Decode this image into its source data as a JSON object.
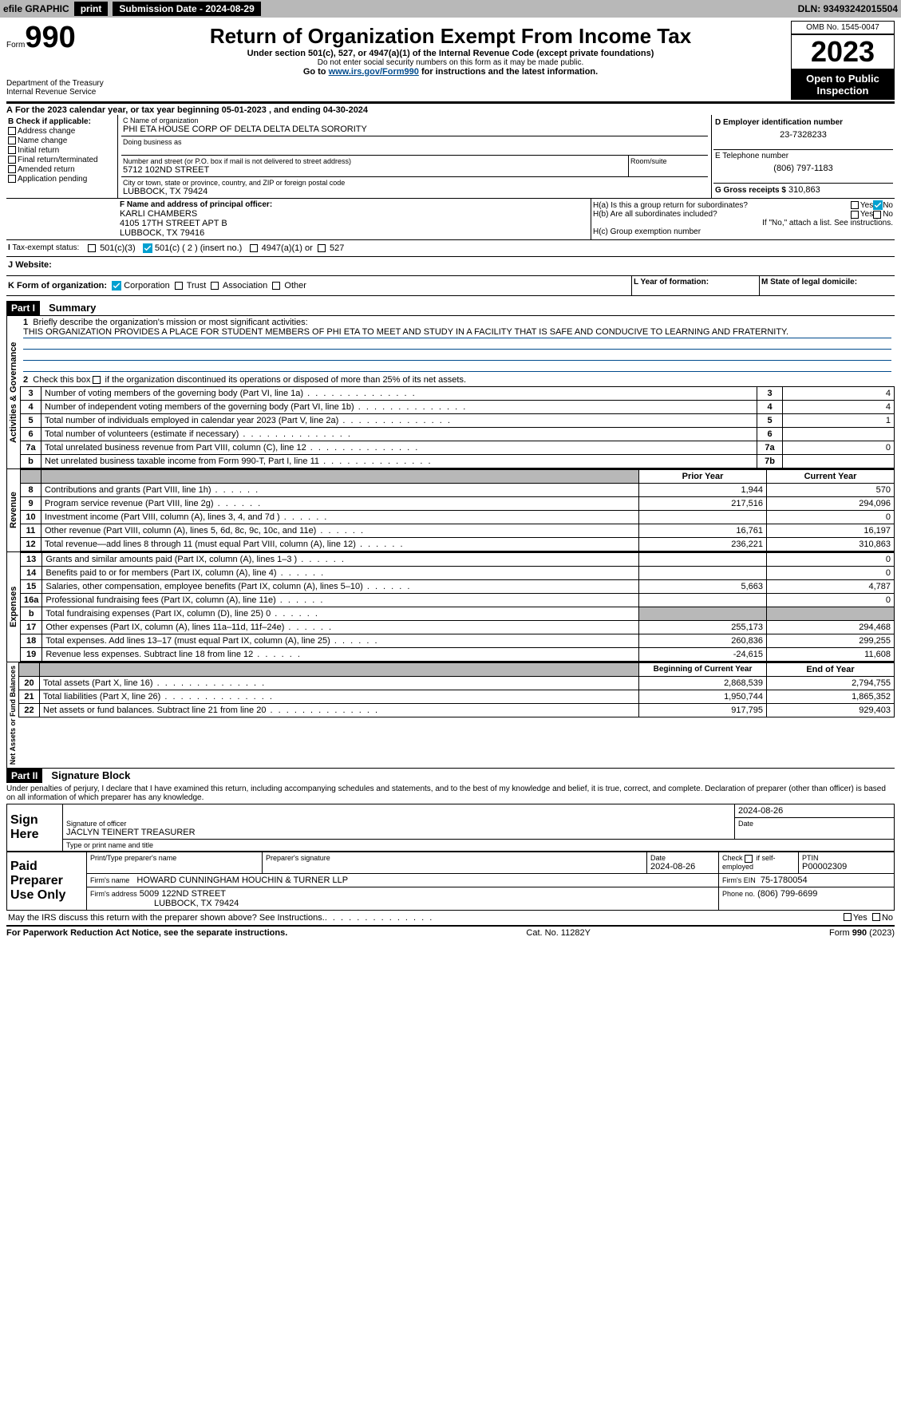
{
  "topbar": {
    "efile": "efile GRAPHIC",
    "print": "print",
    "subdate_label": "Submission Date - 2024-08-29",
    "dln": "DLN: 93493242015504"
  },
  "header": {
    "form_label": "Form",
    "form_num": "990",
    "dept": "Department of the Treasury\nInternal Revenue Service",
    "title": "Return of Organization Exempt From Income Tax",
    "subtitle": "Under section 501(c), 527, or 4947(a)(1) of the Internal Revenue Code (except private foundations)",
    "sub1": "Do not enter social security numbers on this form as it may be made public.",
    "sub2_pre": "Go to ",
    "sub2_link": "www.irs.gov/Form990",
    "sub2_post": " for instructions and the latest information.",
    "omb": "OMB No. 1545-0047",
    "year": "2023",
    "open_public": "Open to Public Inspection"
  },
  "A": {
    "text": "For the 2023 calendar year, or tax year beginning 05-01-2023   , and ending 04-30-2024"
  },
  "B": {
    "label": "B Check if applicable:",
    "items": [
      "Address change",
      "Name change",
      "Initial return",
      "Final return/terminated",
      "Amended return",
      "Application pending"
    ]
  },
  "C": {
    "name_label": "C Name of organization",
    "name": "PHI ETA HOUSE CORP OF DELTA DELTA DELTA SORORITY",
    "dba_label": "Doing business as",
    "dba": "",
    "addr_label": "Number and street (or P.O. box if mail is not delivered to street address)",
    "addr": "5712 102ND STREET",
    "room_label": "Room/suite",
    "room": "",
    "city_label": "City or town, state or province, country, and ZIP or foreign postal code",
    "city": "LUBBOCK, TX  79424"
  },
  "D": {
    "label": "D Employer identification number",
    "val": "23-7328233"
  },
  "E": {
    "label": "E Telephone number",
    "val": "(806) 797-1183"
  },
  "G": {
    "label": "G Gross receipts $",
    "val": "310,863"
  },
  "F": {
    "label": "F Name and address of principal officer:",
    "name": "KARLI CHAMBERS",
    "addr1": "4105 17TH STREET APT B",
    "addr2": "LUBBOCK, TX  79416"
  },
  "H": {
    "a_label": "H(a)  Is this a group return for subordinates?",
    "a_yes": "Yes",
    "a_no": "No",
    "b_label": "H(b)  Are all subordinates included?",
    "b_note": "If \"No,\" attach a list. See instructions.",
    "c_label": "H(c)  Group exemption number"
  },
  "I": {
    "label": "Tax-exempt status:",
    "opt1": "501(c)(3)",
    "opt2": "501(c) ( 2 ) (insert no.)",
    "opt3": "4947(a)(1) or",
    "opt4": "527"
  },
  "J": {
    "label": "Website:",
    "val": ""
  },
  "K": {
    "label": "K Form of organization:",
    "opts": [
      "Corporation",
      "Trust",
      "Association",
      "Other"
    ]
  },
  "L": {
    "label": "L Year of formation:",
    "val": ""
  },
  "M": {
    "label": "M State of legal domicile:",
    "val": ""
  },
  "part1": {
    "hdr": "Part I",
    "title": "Summary",
    "l1_label": "Briefly describe the organization's mission or most significant activities:",
    "l1_text": "THIS ORGANIZATION PROVIDES A PLACE FOR STUDENT MEMBERS OF PHI ETA TO MEET AND STUDY IN A FACILITY THAT IS SAFE AND CONDUCIVE TO LEARNING AND FRATERNITY.",
    "l2": "Check this box     if the organization discontinued its operations or disposed of more than 25% of its net assets.",
    "lines_ag": [
      {
        "n": "3",
        "t": "Number of voting members of the governing body (Part VI, line 1a)",
        "r": "3",
        "v": "4"
      },
      {
        "n": "4",
        "t": "Number of independent voting members of the governing body (Part VI, line 1b)",
        "r": "4",
        "v": "4"
      },
      {
        "n": "5",
        "t": "Total number of individuals employed in calendar year 2023 (Part V, line 2a)",
        "r": "5",
        "v": "1"
      },
      {
        "n": "6",
        "t": "Total number of volunteers (estimate if necessary)",
        "r": "6",
        "v": ""
      },
      {
        "n": "7a",
        "t": "Total unrelated business revenue from Part VIII, column (C), line 12",
        "r": "7a",
        "v": "0"
      },
      {
        "n": "b",
        "t": "Net unrelated business taxable income from Form 990-T, Part I, line 11",
        "r": "7b",
        "v": ""
      }
    ],
    "col_prior": "Prior Year",
    "col_current": "Current Year",
    "revenue": [
      {
        "n": "8",
        "t": "Contributions and grants (Part VIII, line 1h)",
        "p": "1,944",
        "c": "570"
      },
      {
        "n": "9",
        "t": "Program service revenue (Part VIII, line 2g)",
        "p": "217,516",
        "c": "294,096"
      },
      {
        "n": "10",
        "t": "Investment income (Part VIII, column (A), lines 3, 4, and 7d )",
        "p": "",
        "c": "0"
      },
      {
        "n": "11",
        "t": "Other revenue (Part VIII, column (A), lines 5, 6d, 8c, 9c, 10c, and 11e)",
        "p": "16,761",
        "c": "16,197"
      },
      {
        "n": "12",
        "t": "Total revenue—add lines 8 through 11 (must equal Part VIII, column (A), line 12)",
        "p": "236,221",
        "c": "310,863"
      }
    ],
    "expenses": [
      {
        "n": "13",
        "t": "Grants and similar amounts paid (Part IX, column (A), lines 1–3 )",
        "p": "",
        "c": "0"
      },
      {
        "n": "14",
        "t": "Benefits paid to or for members (Part IX, column (A), line 4)",
        "p": "",
        "c": "0"
      },
      {
        "n": "15",
        "t": "Salaries, other compensation, employee benefits (Part IX, column (A), lines 5–10)",
        "p": "5,663",
        "c": "4,787"
      },
      {
        "n": "16a",
        "t": "Professional fundraising fees (Part IX, column (A), line 11e)",
        "p": "",
        "c": "0"
      },
      {
        "n": "b",
        "t": "Total fundraising expenses (Part IX, column (D), line 25) 0",
        "p": "SHADE",
        "c": "SHADE"
      },
      {
        "n": "17",
        "t": "Other expenses (Part IX, column (A), lines 11a–11d, 11f–24e)",
        "p": "255,173",
        "c": "294,468"
      },
      {
        "n": "18",
        "t": "Total expenses. Add lines 13–17 (must equal Part IX, column (A), line 25)",
        "p": "260,836",
        "c": "299,255"
      },
      {
        "n": "19",
        "t": "Revenue less expenses. Subtract line 18 from line 12",
        "p": "-24,615",
        "c": "11,608"
      }
    ],
    "col_begin": "Beginning of Current Year",
    "col_end": "End of Year",
    "netassets": [
      {
        "n": "20",
        "t": "Total assets (Part X, line 16)",
        "p": "2,868,539",
        "c": "2,794,755"
      },
      {
        "n": "21",
        "t": "Total liabilities (Part X, line 26)",
        "p": "1,950,744",
        "c": "1,865,352"
      },
      {
        "n": "22",
        "t": "Net assets or fund balances. Subtract line 21 from line 20",
        "p": "917,795",
        "c": "929,403"
      }
    ],
    "vlabels": {
      "ag": "Activities & Governance",
      "rev": "Revenue",
      "exp": "Expenses",
      "na": "Net Assets or Fund Balances"
    }
  },
  "part2": {
    "hdr": "Part II",
    "title": "Signature Block",
    "penalties": "Under penalties of perjury, I declare that I have examined this return, including accompanying schedules and statements, and to the best of my knowledge and belief, it is true, correct, and complete. Declaration of preparer (other than officer) is based on all information of which preparer has any knowledge.",
    "sign_here": "Sign Here",
    "sig_officer": "Signature of officer",
    "sig_name": "JACLYN TEINERT  TREASURER",
    "sig_title_label": "Type or print name and title",
    "sig_date_label": "Date",
    "sig_date": "2024-08-26",
    "paid": "Paid Preparer Use Only",
    "prep_name_label": "Print/Type preparer's name",
    "prep_sig_label": "Preparer's signature",
    "prep_date_label": "Date",
    "prep_date": "2024-08-26",
    "prep_check_label": "Check     if self-employed",
    "ptin_label": "PTIN",
    "ptin": "P00002309",
    "firm_name_label": "Firm's name",
    "firm_name": "HOWARD CUNNINGHAM HOUCHIN & TURNER LLP",
    "firm_ein_label": "Firm's EIN",
    "firm_ein": "75-1780054",
    "firm_addr_label": "Firm's address",
    "firm_addr": "5009 122ND STREET",
    "firm_city": "LUBBOCK, TX  79424",
    "firm_phone_label": "Phone no.",
    "firm_phone": "(806) 799-6699",
    "discuss": "May the IRS discuss this return with the preparer shown above? See Instructions.",
    "d_yes": "Yes",
    "d_no": "No"
  },
  "footer": {
    "left": "For Paperwork Reduction Act Notice, see the separate instructions.",
    "mid": "Cat. No. 11282Y",
    "right": "Form 990 (2023)"
  }
}
